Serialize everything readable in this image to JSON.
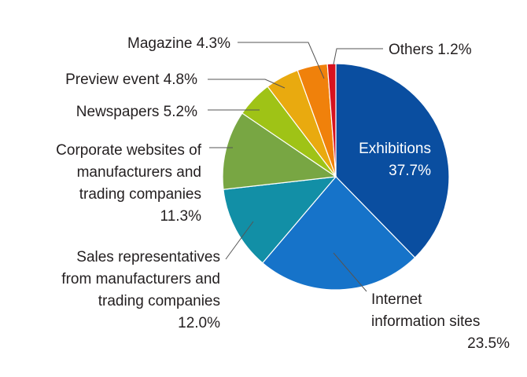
{
  "chart_data": {
    "type": "pie",
    "start_angle_deg": 0,
    "direction": "clockwise",
    "slices": [
      {
        "label_lines": [
          "Exhibitions"
        ],
        "value": 37.7,
        "value_text": "37.7%",
        "color": "#0a4ea0"
      },
      {
        "label_lines": [
          "Internet",
          "information sites"
        ],
        "value": 23.5,
        "value_text": "23.5%",
        "color": "#1673c9"
      },
      {
        "label_lines": [
          "Sales representatives",
          "from manufacturers and",
          "trading companies"
        ],
        "value": 12.0,
        "value_text": "12.0%",
        "color": "#128fa6"
      },
      {
        "label_lines": [
          "Corporate websites of",
          "manufacturers and",
          "trading companies"
        ],
        "value": 11.3,
        "value_text": "11.3%",
        "color": "#78a643"
      },
      {
        "label_lines": [
          "Newspapers"
        ],
        "value": 5.2,
        "value_text": "5.2%",
        "color": "#9fc316"
      },
      {
        "label_lines": [
          "Preview event"
        ],
        "value": 4.8,
        "value_text": "4.8%",
        "color": "#e9aa0f"
      },
      {
        "label_lines": [
          "Magazine"
        ],
        "value": 4.3,
        "value_text": "4.3%",
        "color": "#f0810b"
      },
      {
        "label_lines": [
          "Others"
        ],
        "value": 1.2,
        "value_text": "1.2%",
        "color": "#d7121e"
      }
    ]
  }
}
